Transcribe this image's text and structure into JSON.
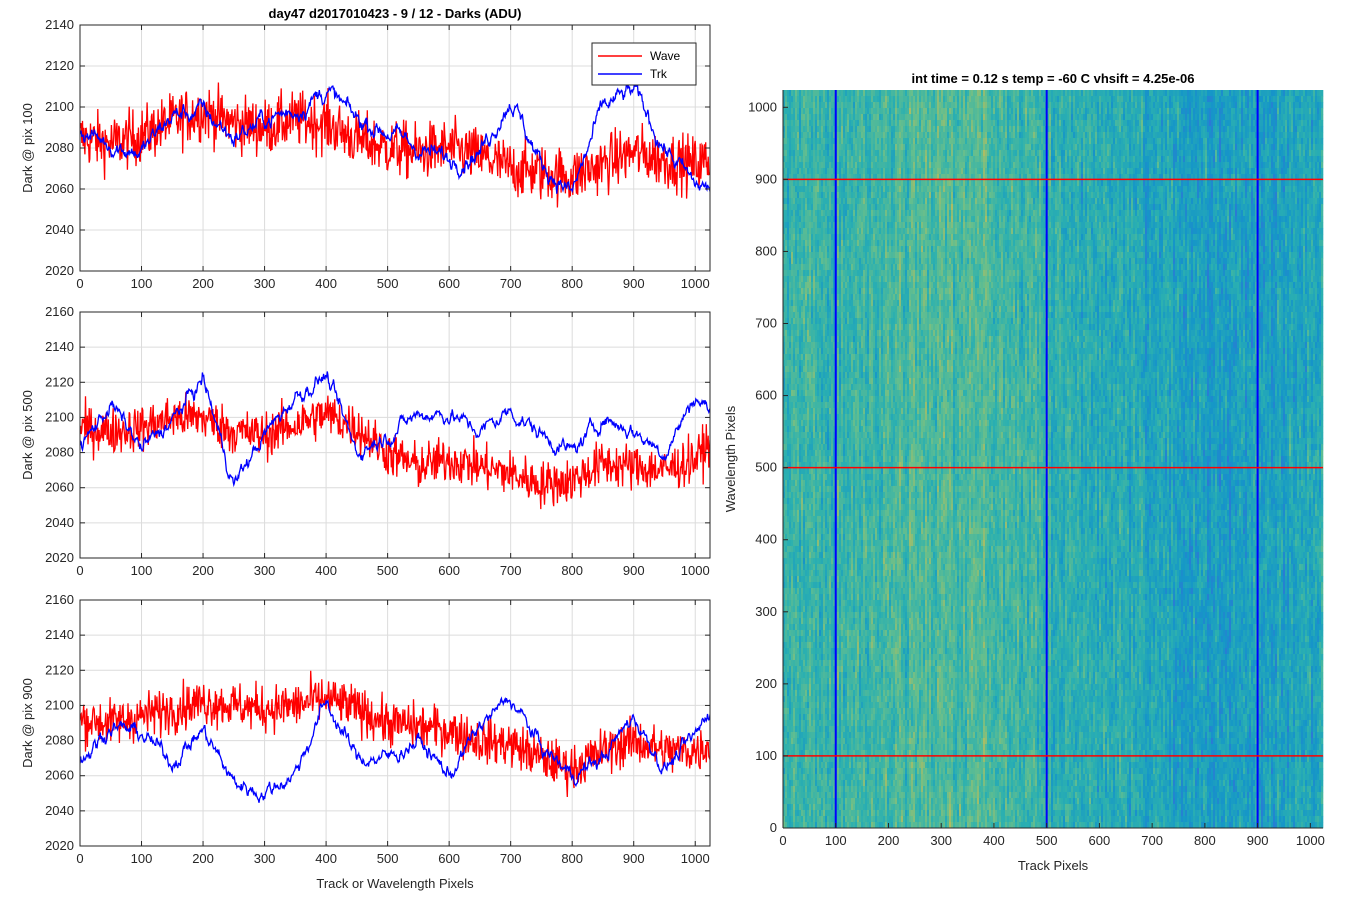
{
  "colors": {
    "wave": "#ff0000",
    "trk": "#0000ff",
    "grid": "#dcdcdc",
    "axis": "#262626"
  },
  "left_panels": {
    "title": "day47 d2017010423 - 9 / 12 - Darks (ADU)",
    "xlabel": "Track or Wavelength Pixels",
    "legend": {
      "wave": "Wave",
      "trk": "Trk",
      "placement": "top-right"
    }
  },
  "right_panel": {
    "title": "int time = 0.12 s    temp = -60 C    vhsift = 4.25e-06",
    "xlabel": "Track Pixels",
    "ylabel": "Wavelength Pixels"
  },
  "chart_data": [
    {
      "type": "line",
      "title": "day47 d2017010423 - 9 / 12 - Darks (ADU)",
      "xlabel": "",
      "ylabel": "Dark @ pix 100",
      "xlim": [
        0,
        1024
      ],
      "ylim": [
        2020,
        2140
      ],
      "xticks": [
        0,
        100,
        200,
        300,
        400,
        500,
        600,
        700,
        800,
        900,
        1000
      ],
      "yticks": [
        2020,
        2040,
        2060,
        2080,
        2100,
        2120,
        2140
      ],
      "grid": true,
      "legend": "top-right",
      "x": [
        0,
        50,
        100,
        150,
        200,
        250,
        300,
        350,
        400,
        450,
        500,
        550,
        600,
        650,
        700,
        750,
        800,
        850,
        900,
        950,
        1000,
        1024
      ],
      "series": [
        {
          "name": "Wave",
          "values": [
            2085,
            2082,
            2086,
            2093,
            2098,
            2092,
            2090,
            2094,
            2092,
            2084,
            2080,
            2078,
            2080,
            2076,
            2070,
            2068,
            2066,
            2072,
            2078,
            2074,
            2072,
            2074
          ],
          "spread": 18
        },
        {
          "name": "Trk",
          "values": [
            2088,
            2082,
            2078,
            2096,
            2098,
            2085,
            2094,
            2098,
            2108,
            2094,
            2088,
            2080,
            2074,
            2078,
            2104,
            2072,
            2058,
            2100,
            2108,
            2080,
            2062,
            2060
          ],
          "spread": 6
        }
      ]
    },
    {
      "type": "line",
      "title": "",
      "xlabel": "",
      "ylabel": "Dark @ pix 500",
      "xlim": [
        0,
        1024
      ],
      "ylim": [
        2020,
        2160
      ],
      "xticks": [
        0,
        100,
        200,
        300,
        400,
        500,
        600,
        700,
        800,
        900,
        1000
      ],
      "yticks": [
        2020,
        2040,
        2060,
        2080,
        2100,
        2120,
        2140,
        2160
      ],
      "grid": true,
      "x": [
        0,
        50,
        100,
        150,
        200,
        250,
        300,
        350,
        400,
        450,
        500,
        550,
        600,
        650,
        700,
        750,
        800,
        850,
        900,
        950,
        1000,
        1024
      ],
      "series": [
        {
          "name": "Wave",
          "values": [
            2094,
            2092,
            2094,
            2100,
            2100,
            2092,
            2090,
            2096,
            2102,
            2094,
            2080,
            2072,
            2076,
            2072,
            2068,
            2062,
            2064,
            2074,
            2072,
            2070,
            2076,
            2086
          ],
          "spread": 17
        },
        {
          "name": "Trk",
          "values": [
            2082,
            2108,
            2082,
            2098,
            2122,
            2062,
            2090,
            2112,
            2124,
            2080,
            2090,
            2102,
            2102,
            2092,
            2104,
            2090,
            2080,
            2100,
            2092,
            2080,
            2112,
            2104
          ],
          "spread": 6
        }
      ]
    },
    {
      "type": "line",
      "title": "",
      "xlabel": "Track or Wavelength Pixels",
      "ylabel": "Dark @ pix 900",
      "xlim": [
        0,
        1024
      ],
      "ylim": [
        2020,
        2160
      ],
      "xticks": [
        0,
        100,
        200,
        300,
        400,
        500,
        600,
        700,
        800,
        900,
        1000
      ],
      "yticks": [
        2020,
        2040,
        2060,
        2080,
        2100,
        2120,
        2140,
        2160
      ],
      "grid": true,
      "x": [
        0,
        50,
        100,
        150,
        200,
        250,
        300,
        350,
        400,
        450,
        500,
        550,
        600,
        650,
        700,
        750,
        800,
        850,
        900,
        950,
        1000,
        1024
      ],
      "series": [
        {
          "name": "Wave",
          "values": [
            2092,
            2090,
            2094,
            2098,
            2102,
            2100,
            2098,
            2100,
            2104,
            2098,
            2090,
            2088,
            2086,
            2080,
            2078,
            2070,
            2064,
            2074,
            2080,
            2074,
            2074,
            2078
          ],
          "spread": 17
        },
        {
          "name": "Trk",
          "values": [
            2068,
            2088,
            2084,
            2068,
            2086,
            2056,
            2050,
            2062,
            2102,
            2070,
            2070,
            2080,
            2060,
            2088,
            2104,
            2076,
            2060,
            2070,
            2094,
            2064,
            2082,
            2098
          ],
          "spread": 6
        }
      ]
    },
    {
      "type": "heatmap",
      "title": "int time = 0.12 s    temp = -60 C    vhsift = 4.25e-06",
      "xlabel": "Track Pixels",
      "ylabel": "Wavelength Pixels",
      "xlim": [
        0,
        1024
      ],
      "ylim": [
        0,
        1024
      ],
      "xticks": [
        0,
        100,
        200,
        300,
        400,
        500,
        600,
        700,
        800,
        900,
        1000
      ],
      "yticks": [
        0,
        100,
        200,
        300,
        400,
        500,
        600,
        700,
        800,
        900,
        1000
      ],
      "columns": [
        0,
        100,
        200,
        300,
        400,
        500,
        600,
        700,
        800,
        900,
        1000,
        1024
      ],
      "column_level": [
        0.55,
        0.56,
        0.62,
        0.66,
        0.62,
        0.52,
        0.46,
        0.4,
        0.32,
        0.34,
        0.42,
        0.44
      ],
      "colormap": [
        "#2f74d8",
        "#1596c8",
        "#2bb0b0",
        "#64be8e",
        "#b2bd60"
      ],
      "marker_lines": {
        "vertical": [
          100,
          500,
          900
        ],
        "horizontal": [
          100,
          500,
          900
        ]
      },
      "marker_colors": {
        "vertical": "#0000ff",
        "horizontal": "#ff0000"
      }
    }
  ]
}
